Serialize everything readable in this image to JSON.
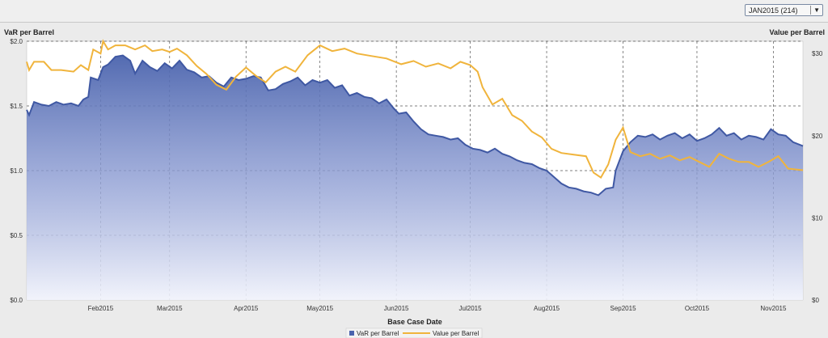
{
  "selector": {
    "value": "JAN2015 (214)",
    "arrow_icon": "caret-down-icon"
  },
  "chart_data": {
    "type": "area",
    "xlabel": "Base Case Date",
    "ylabel_left": "VaR per Barrel",
    "ylabel_right": "Value per Barrel",
    "left_axis": {
      "ylim": [
        0,
        2.0
      ],
      "ticks": [
        "$0.0",
        "$0.5",
        "$1.0",
        "$1.5",
        "$2.0"
      ],
      "tick_values": [
        0,
        0.5,
        1.0,
        1.5,
        2.0
      ]
    },
    "right_axis": {
      "ylim": [
        0,
        31.5
      ],
      "ticks": [
        "$0",
        "$10",
        "$20",
        "$30"
      ],
      "tick_values": [
        0,
        10,
        20,
        30
      ]
    },
    "x_axis": {
      "range": [
        "2015-01-02",
        "2015-11-13"
      ],
      "tick_labels": [
        "Feb2015",
        "Mar2015",
        "Apr2015",
        "May2015",
        "Jun2015",
        "Jul2015",
        "Aug2015",
        "Sep2015",
        "Oct2015",
        "Nov2015"
      ],
      "tick_dates": [
        "2015-02-01",
        "2015-03-01",
        "2015-04-01",
        "2015-05-01",
        "2015-06-01",
        "2015-07-01",
        "2015-08-01",
        "2015-09-01",
        "2015-10-01",
        "2015-11-01"
      ]
    },
    "grid": true,
    "legend_position": "bottom",
    "series": [
      {
        "name": "VaR per Barrel",
        "axis": "left",
        "style": "area",
        "color": "#4a63ad",
        "points": [
          [
            "2015-01-02",
            1.47
          ],
          [
            "2015-01-03",
            1.43
          ],
          [
            "2015-01-05",
            1.53
          ],
          [
            "2015-01-08",
            1.51
          ],
          [
            "2015-01-11",
            1.5
          ],
          [
            "2015-01-14",
            1.53
          ],
          [
            "2015-01-17",
            1.51
          ],
          [
            "2015-01-20",
            1.52
          ],
          [
            "2015-01-23",
            1.5
          ],
          [
            "2015-01-25",
            1.55
          ],
          [
            "2015-01-27",
            1.57
          ],
          [
            "2015-01-28",
            1.72
          ],
          [
            "2015-01-31",
            1.7
          ],
          [
            "2015-02-02",
            1.8
          ],
          [
            "2015-02-04",
            1.82
          ],
          [
            "2015-02-07",
            1.88
          ],
          [
            "2015-02-10",
            1.89
          ],
          [
            "2015-02-13",
            1.85
          ],
          [
            "2015-02-15",
            1.75
          ],
          [
            "2015-02-18",
            1.85
          ],
          [
            "2015-02-21",
            1.8
          ],
          [
            "2015-02-24",
            1.77
          ],
          [
            "2015-02-27",
            1.83
          ],
          [
            "2015-03-02",
            1.79
          ],
          [
            "2015-03-05",
            1.85
          ],
          [
            "2015-03-08",
            1.78
          ],
          [
            "2015-03-11",
            1.76
          ],
          [
            "2015-03-14",
            1.72
          ],
          [
            "2015-03-17",
            1.73
          ],
          [
            "2015-03-20",
            1.68
          ],
          [
            "2015-03-23",
            1.65
          ],
          [
            "2015-03-26",
            1.72
          ],
          [
            "2015-03-29",
            1.7
          ],
          [
            "2015-04-01",
            1.71
          ],
          [
            "2015-04-04",
            1.73
          ],
          [
            "2015-04-07",
            1.72
          ],
          [
            "2015-04-10",
            1.62
          ],
          [
            "2015-04-13",
            1.63
          ],
          [
            "2015-04-16",
            1.67
          ],
          [
            "2015-04-19",
            1.69
          ],
          [
            "2015-04-22",
            1.72
          ],
          [
            "2015-04-25",
            1.66
          ],
          [
            "2015-04-28",
            1.7
          ],
          [
            "2015-05-01",
            1.68
          ],
          [
            "2015-05-04",
            1.7
          ],
          [
            "2015-05-07",
            1.64
          ],
          [
            "2015-05-10",
            1.66
          ],
          [
            "2015-05-13",
            1.58
          ],
          [
            "2015-05-16",
            1.6
          ],
          [
            "2015-05-19",
            1.57
          ],
          [
            "2015-05-22",
            1.56
          ],
          [
            "2015-05-25",
            1.52
          ],
          [
            "2015-05-28",
            1.55
          ],
          [
            "2015-05-31",
            1.48
          ],
          [
            "2015-06-02",
            1.44
          ],
          [
            "2015-06-05",
            1.45
          ],
          [
            "2015-06-08",
            1.38
          ],
          [
            "2015-06-11",
            1.32
          ],
          [
            "2015-06-14",
            1.28
          ],
          [
            "2015-06-17",
            1.27
          ],
          [
            "2015-06-20",
            1.26
          ],
          [
            "2015-06-23",
            1.24
          ],
          [
            "2015-06-26",
            1.25
          ],
          [
            "2015-06-29",
            1.2
          ],
          [
            "2015-07-02",
            1.17
          ],
          [
            "2015-07-05",
            1.16
          ],
          [
            "2015-07-08",
            1.14
          ],
          [
            "2015-07-11",
            1.17
          ],
          [
            "2015-07-14",
            1.13
          ],
          [
            "2015-07-17",
            1.11
          ],
          [
            "2015-07-20",
            1.08
          ],
          [
            "2015-07-23",
            1.06
          ],
          [
            "2015-07-26",
            1.05
          ],
          [
            "2015-07-29",
            1.02
          ],
          [
            "2015-08-01",
            1.0
          ],
          [
            "2015-08-04",
            0.95
          ],
          [
            "2015-08-07",
            0.9
          ],
          [
            "2015-08-10",
            0.87
          ],
          [
            "2015-08-13",
            0.86
          ],
          [
            "2015-08-16",
            0.84
          ],
          [
            "2015-08-19",
            0.83
          ],
          [
            "2015-08-22",
            0.81
          ],
          [
            "2015-08-25",
            0.86
          ],
          [
            "2015-08-28",
            0.87
          ],
          [
            "2015-08-29",
            1.0
          ],
          [
            "2015-09-01",
            1.15
          ],
          [
            "2015-09-04",
            1.22
          ],
          [
            "2015-09-07",
            1.27
          ],
          [
            "2015-09-10",
            1.26
          ],
          [
            "2015-09-13",
            1.28
          ],
          [
            "2015-09-16",
            1.24
          ],
          [
            "2015-09-19",
            1.27
          ],
          [
            "2015-09-22",
            1.29
          ],
          [
            "2015-09-25",
            1.25
          ],
          [
            "2015-09-28",
            1.28
          ],
          [
            "2015-10-01",
            1.23
          ],
          [
            "2015-10-04",
            1.25
          ],
          [
            "2015-10-07",
            1.28
          ],
          [
            "2015-10-10",
            1.33
          ],
          [
            "2015-10-13",
            1.27
          ],
          [
            "2015-10-16",
            1.29
          ],
          [
            "2015-10-19",
            1.24
          ],
          [
            "2015-10-22",
            1.27
          ],
          [
            "2015-10-25",
            1.26
          ],
          [
            "2015-10-28",
            1.24
          ],
          [
            "2015-10-31",
            1.32
          ],
          [
            "2015-11-03",
            1.28
          ],
          [
            "2015-11-06",
            1.27
          ],
          [
            "2015-11-09",
            1.22
          ],
          [
            "2015-11-13",
            1.19
          ]
        ]
      },
      {
        "name": "Value per Barrel",
        "axis": "right",
        "style": "line",
        "color": "#f0b43c",
        "points": [
          [
            "2015-01-02",
            29.0
          ],
          [
            "2015-01-03",
            28.0
          ],
          [
            "2015-01-05",
            29.0
          ],
          [
            "2015-01-09",
            29.0
          ],
          [
            "2015-01-12",
            28.0
          ],
          [
            "2015-01-16",
            28.0
          ],
          [
            "2015-01-21",
            27.8
          ],
          [
            "2015-01-24",
            28.6
          ],
          [
            "2015-01-27",
            28.0
          ],
          [
            "2015-01-29",
            30.5
          ],
          [
            "2015-02-01",
            30.0
          ],
          [
            "2015-02-02",
            31.5
          ],
          [
            "2015-02-04",
            30.5
          ],
          [
            "2015-02-07",
            31.0
          ],
          [
            "2015-02-11",
            31.0
          ],
          [
            "2015-02-15",
            30.5
          ],
          [
            "2015-02-19",
            31.0
          ],
          [
            "2015-02-22",
            30.3
          ],
          [
            "2015-02-26",
            30.5
          ],
          [
            "2015-03-01",
            30.2
          ],
          [
            "2015-03-04",
            30.6
          ],
          [
            "2015-03-08",
            29.8
          ],
          [
            "2015-03-12",
            28.5
          ],
          [
            "2015-03-16",
            27.5
          ],
          [
            "2015-03-20",
            26.2
          ],
          [
            "2015-03-24",
            25.6
          ],
          [
            "2015-03-28",
            27.2
          ],
          [
            "2015-04-01",
            28.3
          ],
          [
            "2015-04-05",
            27.3
          ],
          [
            "2015-04-09",
            26.5
          ],
          [
            "2015-04-13",
            27.8
          ],
          [
            "2015-04-17",
            28.4
          ],
          [
            "2015-04-21",
            27.8
          ],
          [
            "2015-04-26",
            29.8
          ],
          [
            "2015-05-01",
            31.0
          ],
          [
            "2015-05-06",
            30.3
          ],
          [
            "2015-05-11",
            30.6
          ],
          [
            "2015-05-16",
            30.0
          ],
          [
            "2015-05-22",
            29.7
          ],
          [
            "2015-05-28",
            29.4
          ],
          [
            "2015-06-03",
            28.7
          ],
          [
            "2015-06-08",
            29.1
          ],
          [
            "2015-06-13",
            28.4
          ],
          [
            "2015-06-18",
            28.8
          ],
          [
            "2015-06-23",
            28.2
          ],
          [
            "2015-06-27",
            29.0
          ],
          [
            "2015-07-01",
            28.6
          ],
          [
            "2015-07-04",
            27.8
          ],
          [
            "2015-07-06",
            25.9
          ],
          [
            "2015-07-10",
            23.8
          ],
          [
            "2015-07-14",
            24.5
          ],
          [
            "2015-07-18",
            22.5
          ],
          [
            "2015-07-22",
            21.8
          ],
          [
            "2015-07-26",
            20.5
          ],
          [
            "2015-07-30",
            19.8
          ],
          [
            "2015-08-03",
            18.4
          ],
          [
            "2015-08-07",
            17.9
          ],
          [
            "2015-08-12",
            17.7
          ],
          [
            "2015-08-17",
            17.5
          ],
          [
            "2015-08-20",
            15.5
          ],
          [
            "2015-08-23",
            14.9
          ],
          [
            "2015-08-26",
            16.5
          ],
          [
            "2015-08-29",
            19.5
          ],
          [
            "2015-09-01",
            21.0
          ],
          [
            "2015-09-04",
            18.0
          ],
          [
            "2015-09-08",
            17.5
          ],
          [
            "2015-09-12",
            17.8
          ],
          [
            "2015-09-16",
            17.2
          ],
          [
            "2015-09-20",
            17.6
          ],
          [
            "2015-09-24",
            17.0
          ],
          [
            "2015-09-28",
            17.4
          ],
          [
            "2015-10-02",
            16.8
          ],
          [
            "2015-10-06",
            16.2
          ],
          [
            "2015-10-10",
            17.8
          ],
          [
            "2015-10-14",
            17.2
          ],
          [
            "2015-10-18",
            16.8
          ],
          [
            "2015-10-22",
            16.8
          ],
          [
            "2015-10-26",
            16.2
          ],
          [
            "2015-10-30",
            16.8
          ],
          [
            "2015-11-03",
            17.5
          ],
          [
            "2015-11-07",
            16.0
          ],
          [
            "2015-11-13",
            15.8
          ]
        ]
      }
    ]
  }
}
